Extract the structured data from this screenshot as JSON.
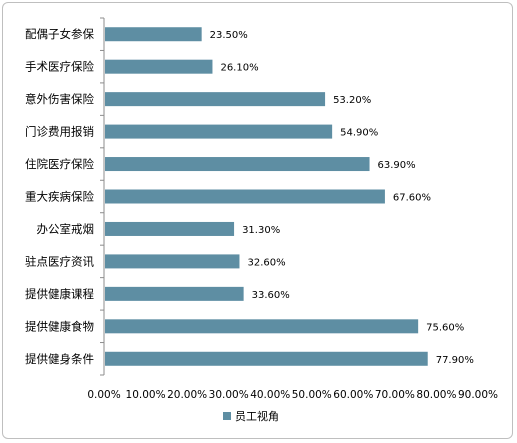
{
  "chart_data": {
    "type": "bar",
    "orientation": "horizontal",
    "categories": [
      "配偶子女参保",
      "手术医疗保险",
      "意外伤害保险",
      "门诊费用报销",
      "住院医疗保险",
      "重大疾病保险",
      "办公室戒烟",
      "驻点医疗资讯",
      "提供健康课程",
      "提供健康食物",
      "提供健身条件"
    ],
    "series": [
      {
        "name": "员工视角",
        "values": [
          23.5,
          26.1,
          53.2,
          54.9,
          63.9,
          67.6,
          31.3,
          32.6,
          33.6,
          75.6,
          77.9
        ],
        "labels": [
          "23.50%",
          "26.10%",
          "53.20%",
          "54.90%",
          "63.90%",
          "67.60%",
          "31.30%",
          "32.60%",
          "33.60%",
          "75.60%",
          "77.90%"
        ],
        "color": "#5e8ea3"
      }
    ],
    "xlim": [
      0,
      90
    ],
    "xticks": [
      "0.00%",
      "10.00%",
      "20.00%",
      "30.00%",
      "40.00%",
      "50.00%",
      "60.00%",
      "70.00%",
      "80.00%",
      "90.00%"
    ],
    "grid": false,
    "legend": "bottom"
  }
}
